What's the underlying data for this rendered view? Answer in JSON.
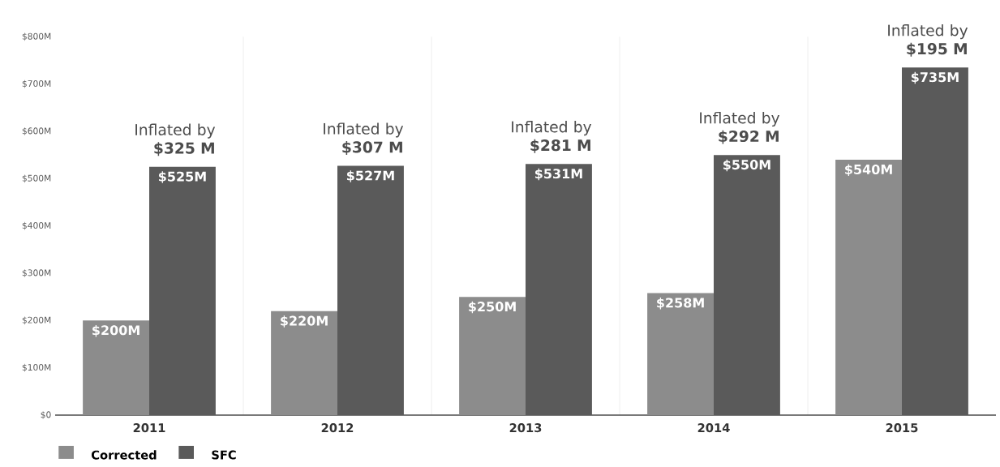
{
  "chart_data": {
    "type": "bar",
    "categories": [
      "2011",
      "2012",
      "2013",
      "2014",
      "2015"
    ],
    "series": [
      {
        "name": "Corrected",
        "color": "#8c8c8c",
        "values": [
          200,
          220,
          250,
          258,
          540
        ],
        "value_labels": [
          "$200M",
          "$220M",
          "$250M",
          "$258M",
          "$540M"
        ]
      },
      {
        "name": "SFC",
        "color": "#5a5a5a",
        "values": [
          525,
          527,
          531,
          550,
          735
        ],
        "value_labels": [
          "$525M",
          "$527M",
          "$531M",
          "$550M",
          "$735M"
        ]
      }
    ],
    "ylim": [
      0,
      800
    ],
    "yticks": [
      {
        "value": 0,
        "label": "$0"
      },
      {
        "value": 100,
        "label": "$100M"
      },
      {
        "value": 200,
        "label": "$200M"
      },
      {
        "value": 300,
        "label": "$300M"
      },
      {
        "value": 400,
        "label": "$400M"
      },
      {
        "value": 500,
        "label": "$500M"
      },
      {
        "value": 600,
        "label": "$600M"
      },
      {
        "value": 700,
        "label": "$700M"
      },
      {
        "value": 800,
        "label": "$800M"
      }
    ],
    "annotations": [
      {
        "text": "Inflated by **$325 M**",
        "x": "2011",
        "y": 525
      },
      {
        "text": "Inflated by **$307 M**",
        "x": "2012",
        "y": 527
      },
      {
        "text": "Inflated by **$281 M**",
        "x": "2013",
        "y": 531
      },
      {
        "text": "Inflated by **$292 M**",
        "x": "2014",
        "y": 550
      },
      {
        "text": "Inflated by **$195 M**",
        "x": "2015",
        "y": 735
      }
    ],
    "grid": "x",
    "legend": "bottom left"
  }
}
